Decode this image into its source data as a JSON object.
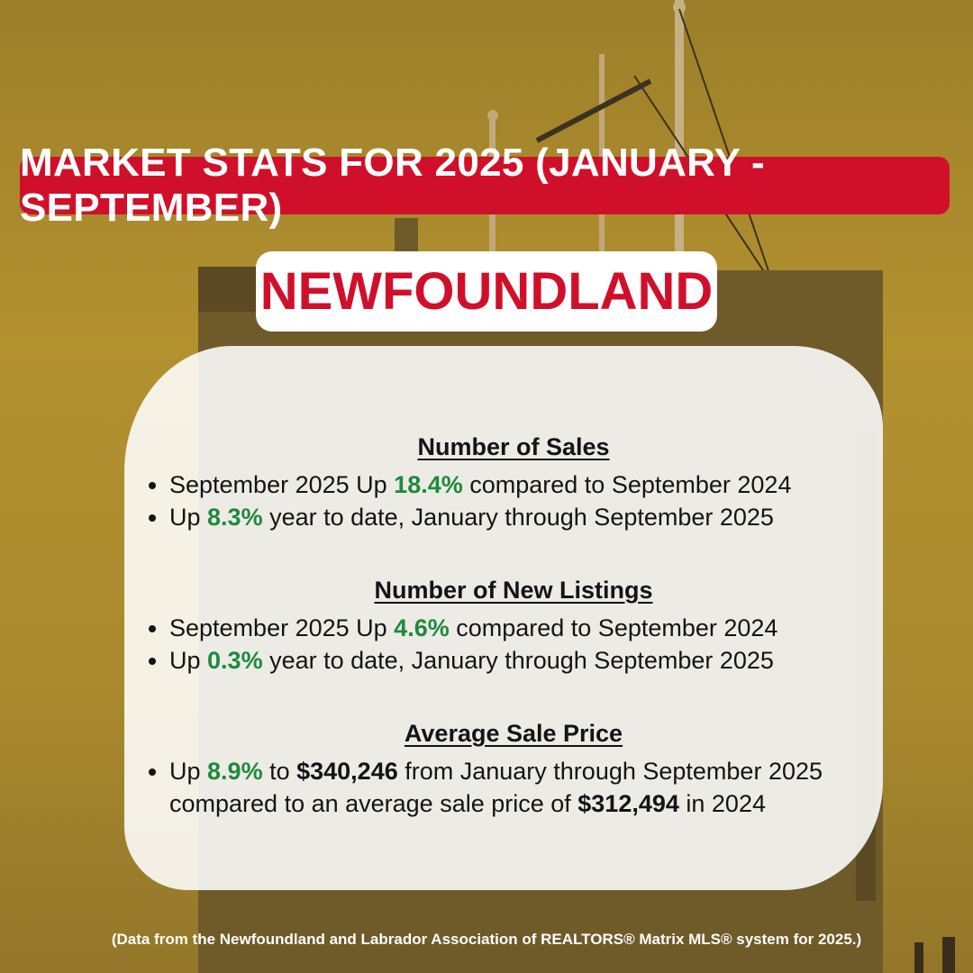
{
  "banner": {
    "title": "MARKET STATS FOR 2025 (JANUARY - SEPTEMBER)"
  },
  "region": {
    "name": "NEWFOUNDLAND"
  },
  "sections": {
    "sales": {
      "title": "Number of Sales",
      "items": [
        {
          "a": "September 2025 Up ",
          "pct": "18.4%",
          "b": " compared to September 2024"
        },
        {
          "a": " Up ",
          "pct": "8.3%",
          "b": " year to date, January through September 2025"
        }
      ]
    },
    "listings": {
      "title": "Number of New Listings",
      "items": [
        {
          "a": "September 2025 Up ",
          "pct": "4.6%",
          "b": " compared to September 2024"
        },
        {
          "a": "Up ",
          "pct": "0.3%",
          "b": " year to date, January through September 2025"
        }
      ]
    },
    "price": {
      "title": "Average Sale Price",
      "item": {
        "a": "Up ",
        "pct": "8.9%",
        "b": " to ",
        "price_now": "$340,246",
        "c": " from January through September 2025 compared to an average sale price of ",
        "price_prev": "$312,494",
        "d": " in 2024"
      }
    }
  },
  "footer": {
    "source": "(Data from the Newfoundland and Labrador Association of REALTORS® Matrix MLS® system for 2025.)"
  },
  "colors": {
    "red": "#d0102a",
    "green": "#1e8a3c",
    "background": "#a98a2e"
  }
}
